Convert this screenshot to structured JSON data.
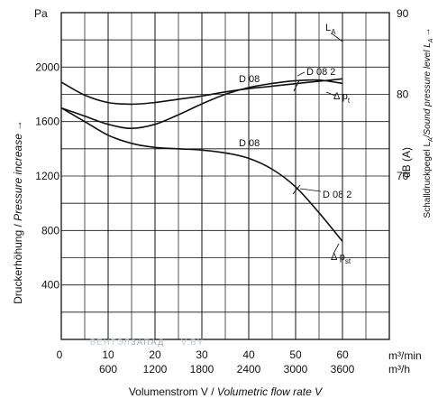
{
  "chart_data": {
    "type": "line",
    "units": {
      "y_left": "Pa",
      "y_right": "90",
      "x_top": "m³/min",
      "x_bottom": "m³/h",
      "y_right_axis": "dB (A)"
    },
    "xlabel": {
      "prefix": "Volumenstrom V / ",
      "italic": "Volumetric flow rate V"
    },
    "ylabel": {
      "prefix": "Druckerhöhung / ",
      "italic": "Pressure increase",
      "arrow": "→"
    },
    "y2label": {
      "text": "Schalldruckpegel L",
      "sub": "A",
      "italic": "/Sound pressure level L",
      "sub2": "A",
      "arrow": "→"
    },
    "x_ticks": [
      "0",
      "10",
      "20",
      "30",
      "40",
      "50",
      "60"
    ],
    "x_ticks_m3h": [
      "600",
      "1200",
      "1800",
      "2400",
      "3000",
      "3600"
    ],
    "y_ticks": [
      "400",
      "800",
      "1200",
      "1600",
      "2000"
    ],
    "y2_ticks": [
      "70",
      "80"
    ],
    "xlim": [
      0,
      70
    ],
    "ylim": [
      0,
      2400
    ],
    "y2lim": [
      50,
      90
    ],
    "series": [
      {
        "name": "L_A",
        "axis": "right",
        "x": [
          0,
          5,
          10,
          15,
          20,
          25,
          30,
          35,
          40,
          45,
          50,
          55,
          60
        ],
        "values": [
          81.5,
          79.9,
          79.0,
          78.8,
          79.0,
          79.4,
          79.8,
          80.3,
          80.7,
          81.0,
          81.3,
          81.6,
          81.9
        ]
      },
      {
        "name": "Δ p_t (D 08)",
        "axis": "left",
        "x": [
          0,
          5,
          10,
          15,
          20,
          25,
          30,
          35,
          40,
          45,
          50,
          55,
          60
        ],
        "values": [
          1700,
          1640,
          1580,
          1550,
          1580,
          1650,
          1730,
          1800,
          1850,
          1880,
          1900,
          1905,
          1880
        ]
      },
      {
        "name": "Δ p_st (D 08)",
        "axis": "left",
        "x": [
          0,
          5,
          10,
          15,
          20,
          25,
          30,
          35,
          40,
          45,
          50,
          55,
          60
        ],
        "values": [
          1700,
          1600,
          1500,
          1440,
          1410,
          1400,
          1390,
          1370,
          1330,
          1250,
          1120,
          930,
          720
        ]
      }
    ],
    "annotations": [
      {
        "text": "L",
        "sub": "A"
      },
      {
        "text": "D 08"
      },
      {
        "text": "D 08 2"
      },
      {
        "text": "Δ p",
        "sub": "t"
      },
      {
        "text": "D 08"
      },
      {
        "text": "D 08 2"
      },
      {
        "text": "Δ p",
        "sub": "st"
      }
    ],
    "watermark": {
      "text": "ВЕНТЭЛ",
      "text2": "ЗАПАД",
      "text3": "V.BY"
    },
    "grid": true
  }
}
